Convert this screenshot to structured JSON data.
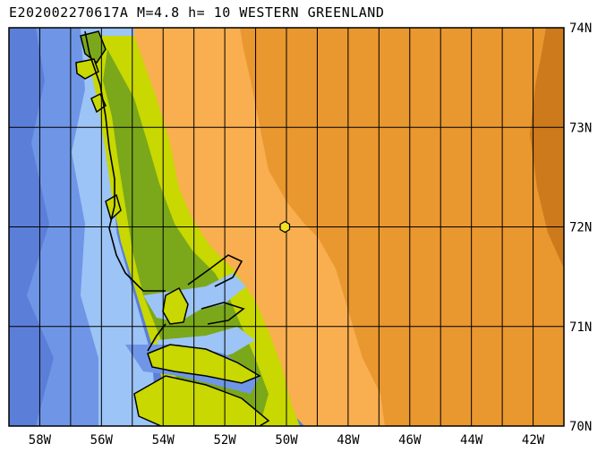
{
  "title": "E202002270617A M=4.8 h= 10 WESTERN GREENLAND",
  "map": {
    "lat_labels": [
      "74N",
      "73N",
      "72N",
      "71N",
      "70N"
    ],
    "lon_labels": [
      "58W",
      "56W",
      "54W",
      "52W",
      "50W",
      "48W",
      "46W",
      "44W",
      "42W"
    ],
    "extent": {
      "lon_min": -59.0,
      "lon_max": -41.0,
      "lat_min": 70.0,
      "lat_max": 74.0
    },
    "epicenter": {
      "lon": -50.05,
      "lat": 72.0
    },
    "colors": {
      "deep_ocean": "#5b7fd8",
      "mid_ocean": "#6f96e6",
      "shelf": "#9cc4f6",
      "lowland": "#c8d800",
      "highland": "#7ba81a",
      "ice_low": "#f9ae50",
      "ice_mid": "#e9972f",
      "ice_high": "#cc7a1c",
      "epicenter": "#f0e020"
    }
  }
}
